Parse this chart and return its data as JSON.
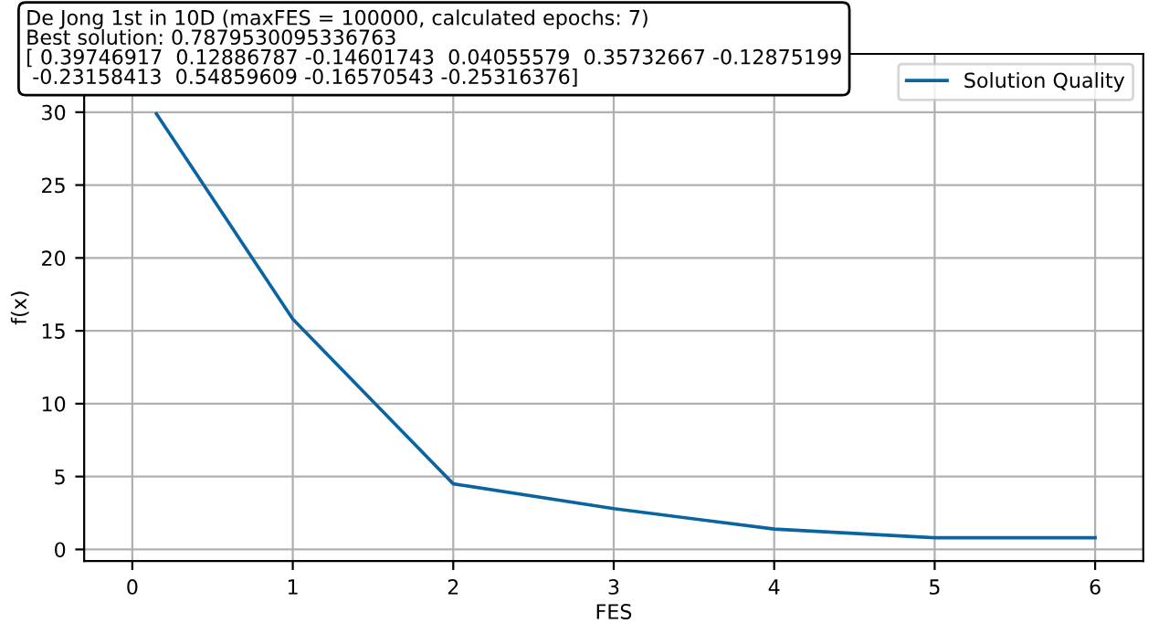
{
  "chart_data": {
    "type": "line",
    "xlabel": "FES",
    "ylabel": "f(x)",
    "annotations": [
      "De Jong 1st in 10D (maxFES = 100000, calculated epochs: 7)\nBest solution: 0.7879530095336763\n[ 0.39746917  0.12886787 -0.14601743  0.04055579  0.35732667 -0.12875199\n -0.23158413  0.54859609 -0.16570543 -0.25316376]"
    ],
    "series": [
      {
        "name": "Solution Quality",
        "color": "#0a64a0",
        "x": [
          0.15,
          1,
          2,
          3,
          4,
          5,
          6
        ],
        "values": [
          29.9,
          15.8,
          4.5,
          2.8,
          1.4,
          0.8,
          0.8
        ]
      }
    ],
    "xlim": [
      -0.3,
      6.3
    ],
    "ylim": [
      -0.8,
      34.0
    ],
    "xticks": [
      0,
      1,
      2,
      3,
      4,
      5,
      6
    ],
    "yticks": [
      0,
      5,
      10,
      15,
      20,
      25,
      30
    ],
    "grid": true,
    "legend": "top right"
  }
}
